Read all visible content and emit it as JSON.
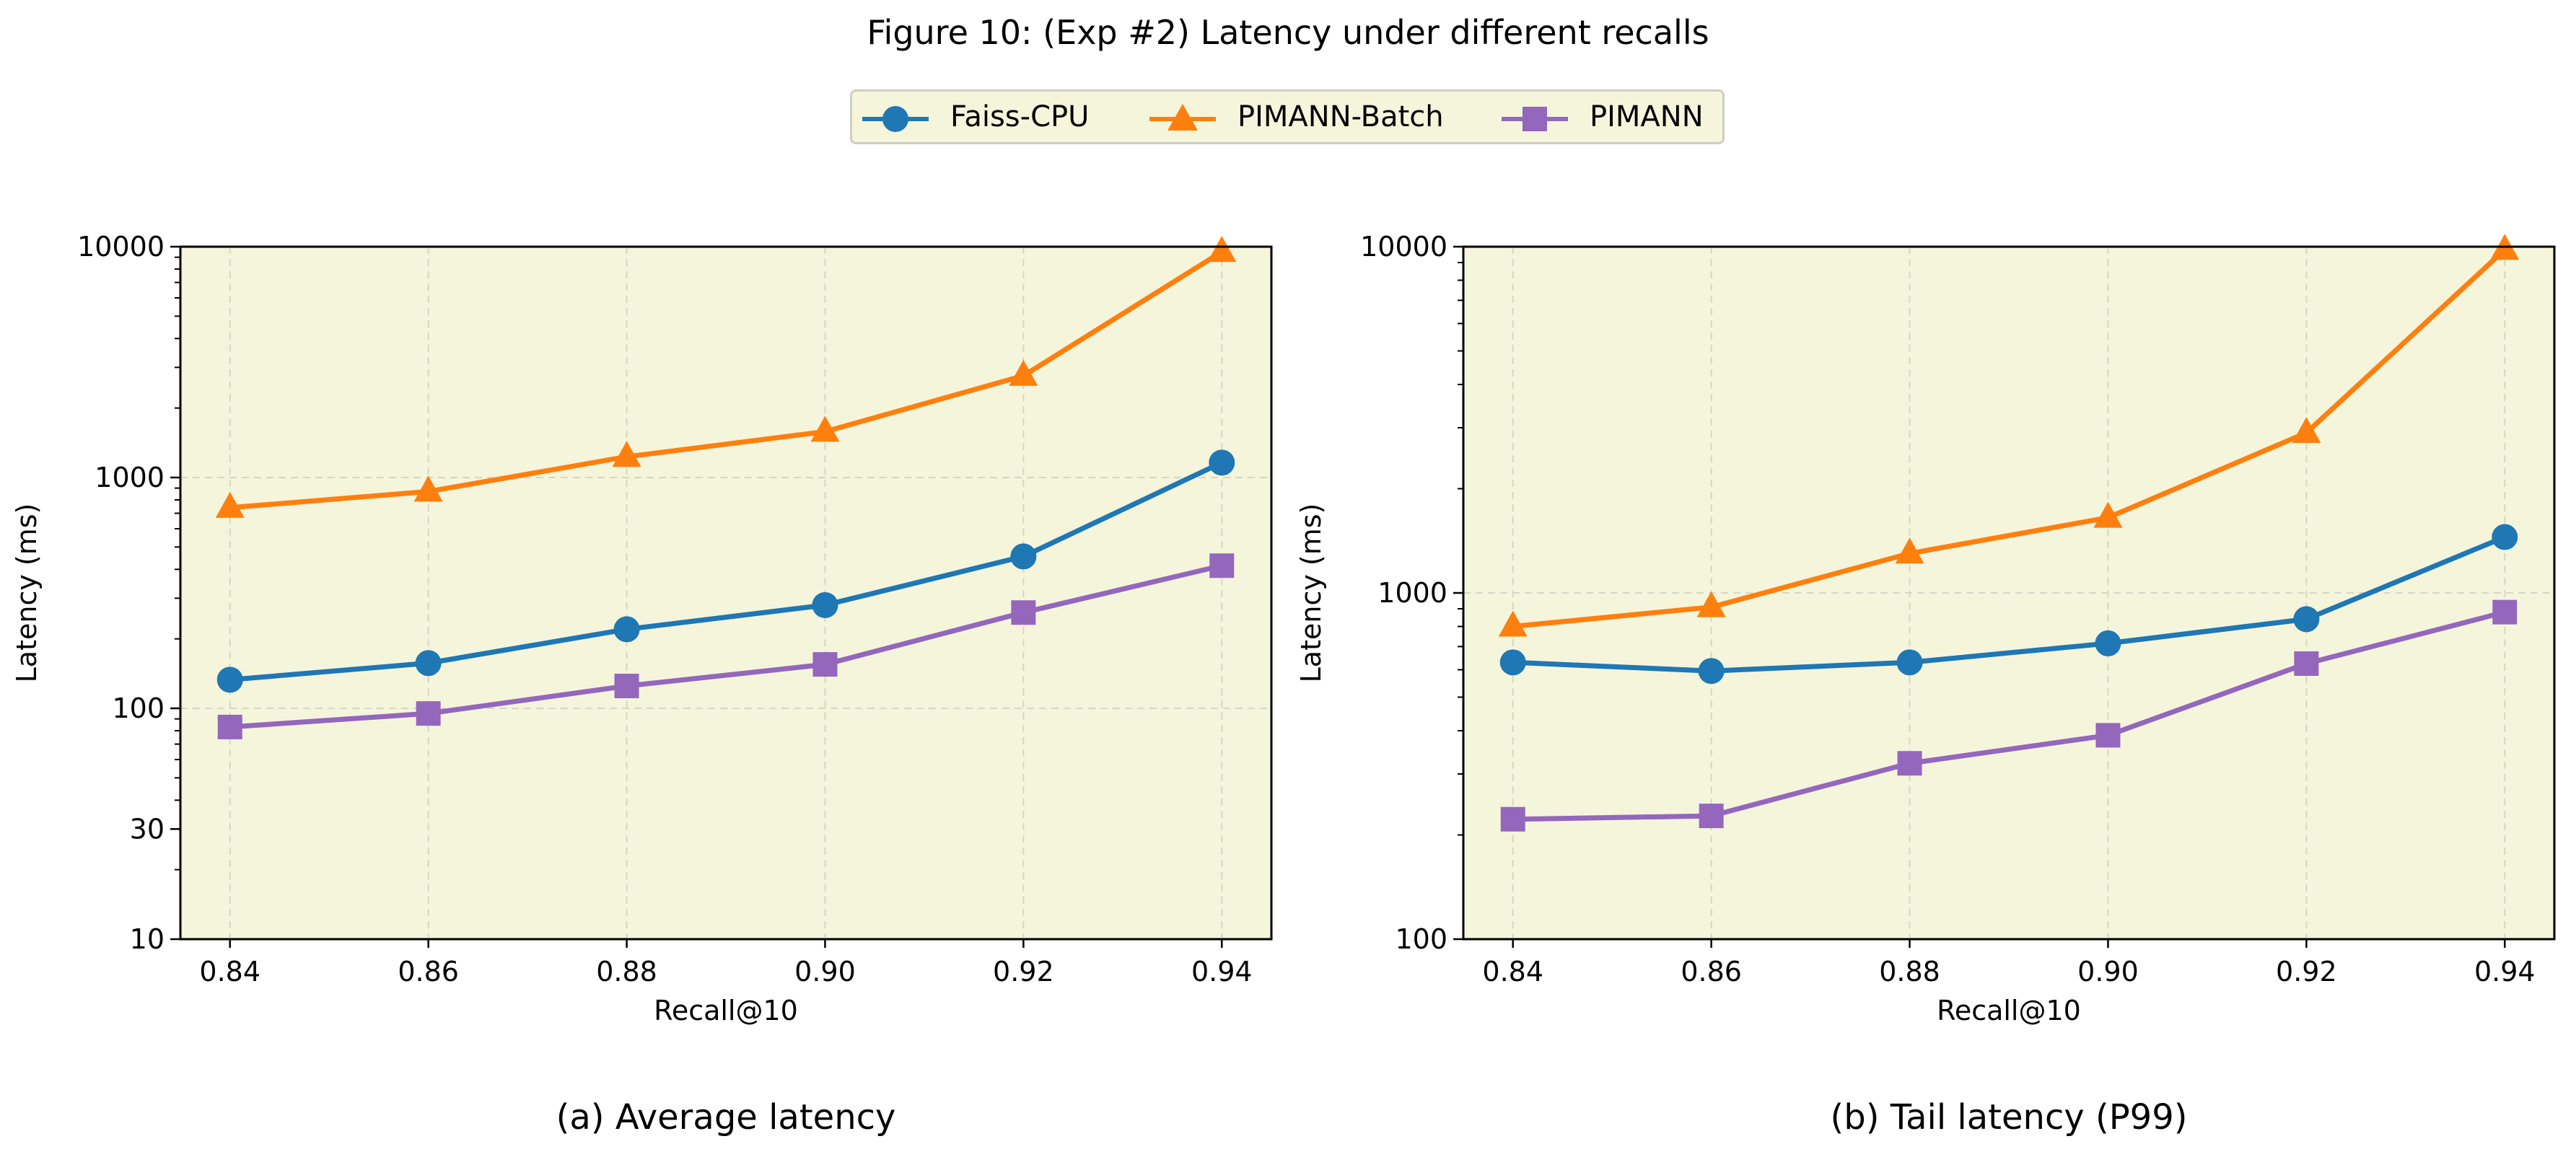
{
  "figure": {
    "title": "Figure 10: (Exp #2) Latency under different recalls"
  },
  "legend": {
    "placement": "top-center",
    "entries": [
      {
        "name": "Faiss-CPU",
        "color": "#1f77b4",
        "marker": "circle"
      },
      {
        "name": "PIMANN-Batch",
        "color": "#ff7f0e",
        "marker": "triangle"
      },
      {
        "name": "PIMANN",
        "color": "#9467bd",
        "marker": "square"
      }
    ]
  },
  "style": {
    "plot_background": "#f5f5dc",
    "grid_color": "#d6d6c6"
  },
  "chart_data": [
    {
      "type": "line",
      "caption": "(a) Average latency",
      "xlabel": "Recall@10",
      "ylabel": "Latency (ms)",
      "yscale": "log",
      "xlim": [
        0.835,
        0.945
      ],
      "ylim": [
        10,
        10000
      ],
      "xticks": [
        0.84,
        0.86,
        0.88,
        0.9,
        0.92,
        0.94
      ],
      "xtick_labels": [
        "0.84",
        "0.86",
        "0.88",
        "0.90",
        "0.92",
        "0.94"
      ],
      "yticks": [
        10,
        30,
        100,
        1000,
        10000
      ],
      "ytick_labels": [
        "10",
        "30",
        "100",
        "1000",
        "10000"
      ],
      "grid": true,
      "x": [
        0.84,
        0.86,
        0.88,
        0.9,
        0.92,
        0.94
      ],
      "series": [
        {
          "name": "Faiss-CPU",
          "values": [
            133,
            157,
            220,
            280,
            455,
            1160
          ]
        },
        {
          "name": "PIMANN-Batch",
          "values": [
            740,
            870,
            1230,
            1580,
            2760,
            9500
          ]
        },
        {
          "name": "PIMANN",
          "values": [
            83,
            95,
            125,
            155,
            260,
            415
          ]
        }
      ]
    },
    {
      "type": "line",
      "caption": "(b) Tail latency (P99)",
      "xlabel": "Recall@10",
      "ylabel": "Latency (ms)",
      "yscale": "log",
      "xlim": [
        0.835,
        0.945
      ],
      "ylim": [
        100,
        10000
      ],
      "xticks": [
        0.84,
        0.86,
        0.88,
        0.9,
        0.92,
        0.94
      ],
      "xtick_labels": [
        "0.84",
        "0.86",
        "0.88",
        "0.90",
        "0.92",
        "0.94"
      ],
      "yticks": [
        100,
        1000,
        10000
      ],
      "ytick_labels": [
        "100",
        "1000",
        "10000"
      ],
      "grid": true,
      "x": [
        0.84,
        0.86,
        0.88,
        0.9,
        0.92,
        0.94
      ],
      "series": [
        {
          "name": "Faiss-CPU",
          "values": [
            630,
            595,
            630,
            715,
            840,
            1450
          ]
        },
        {
          "name": "PIMANN-Batch",
          "values": [
            800,
            910,
            1300,
            1650,
            2900,
            9800
          ]
        },
        {
          "name": "PIMANN",
          "values": [
            222,
            227,
            322,
            388,
            625,
            880
          ]
        }
      ]
    }
  ]
}
